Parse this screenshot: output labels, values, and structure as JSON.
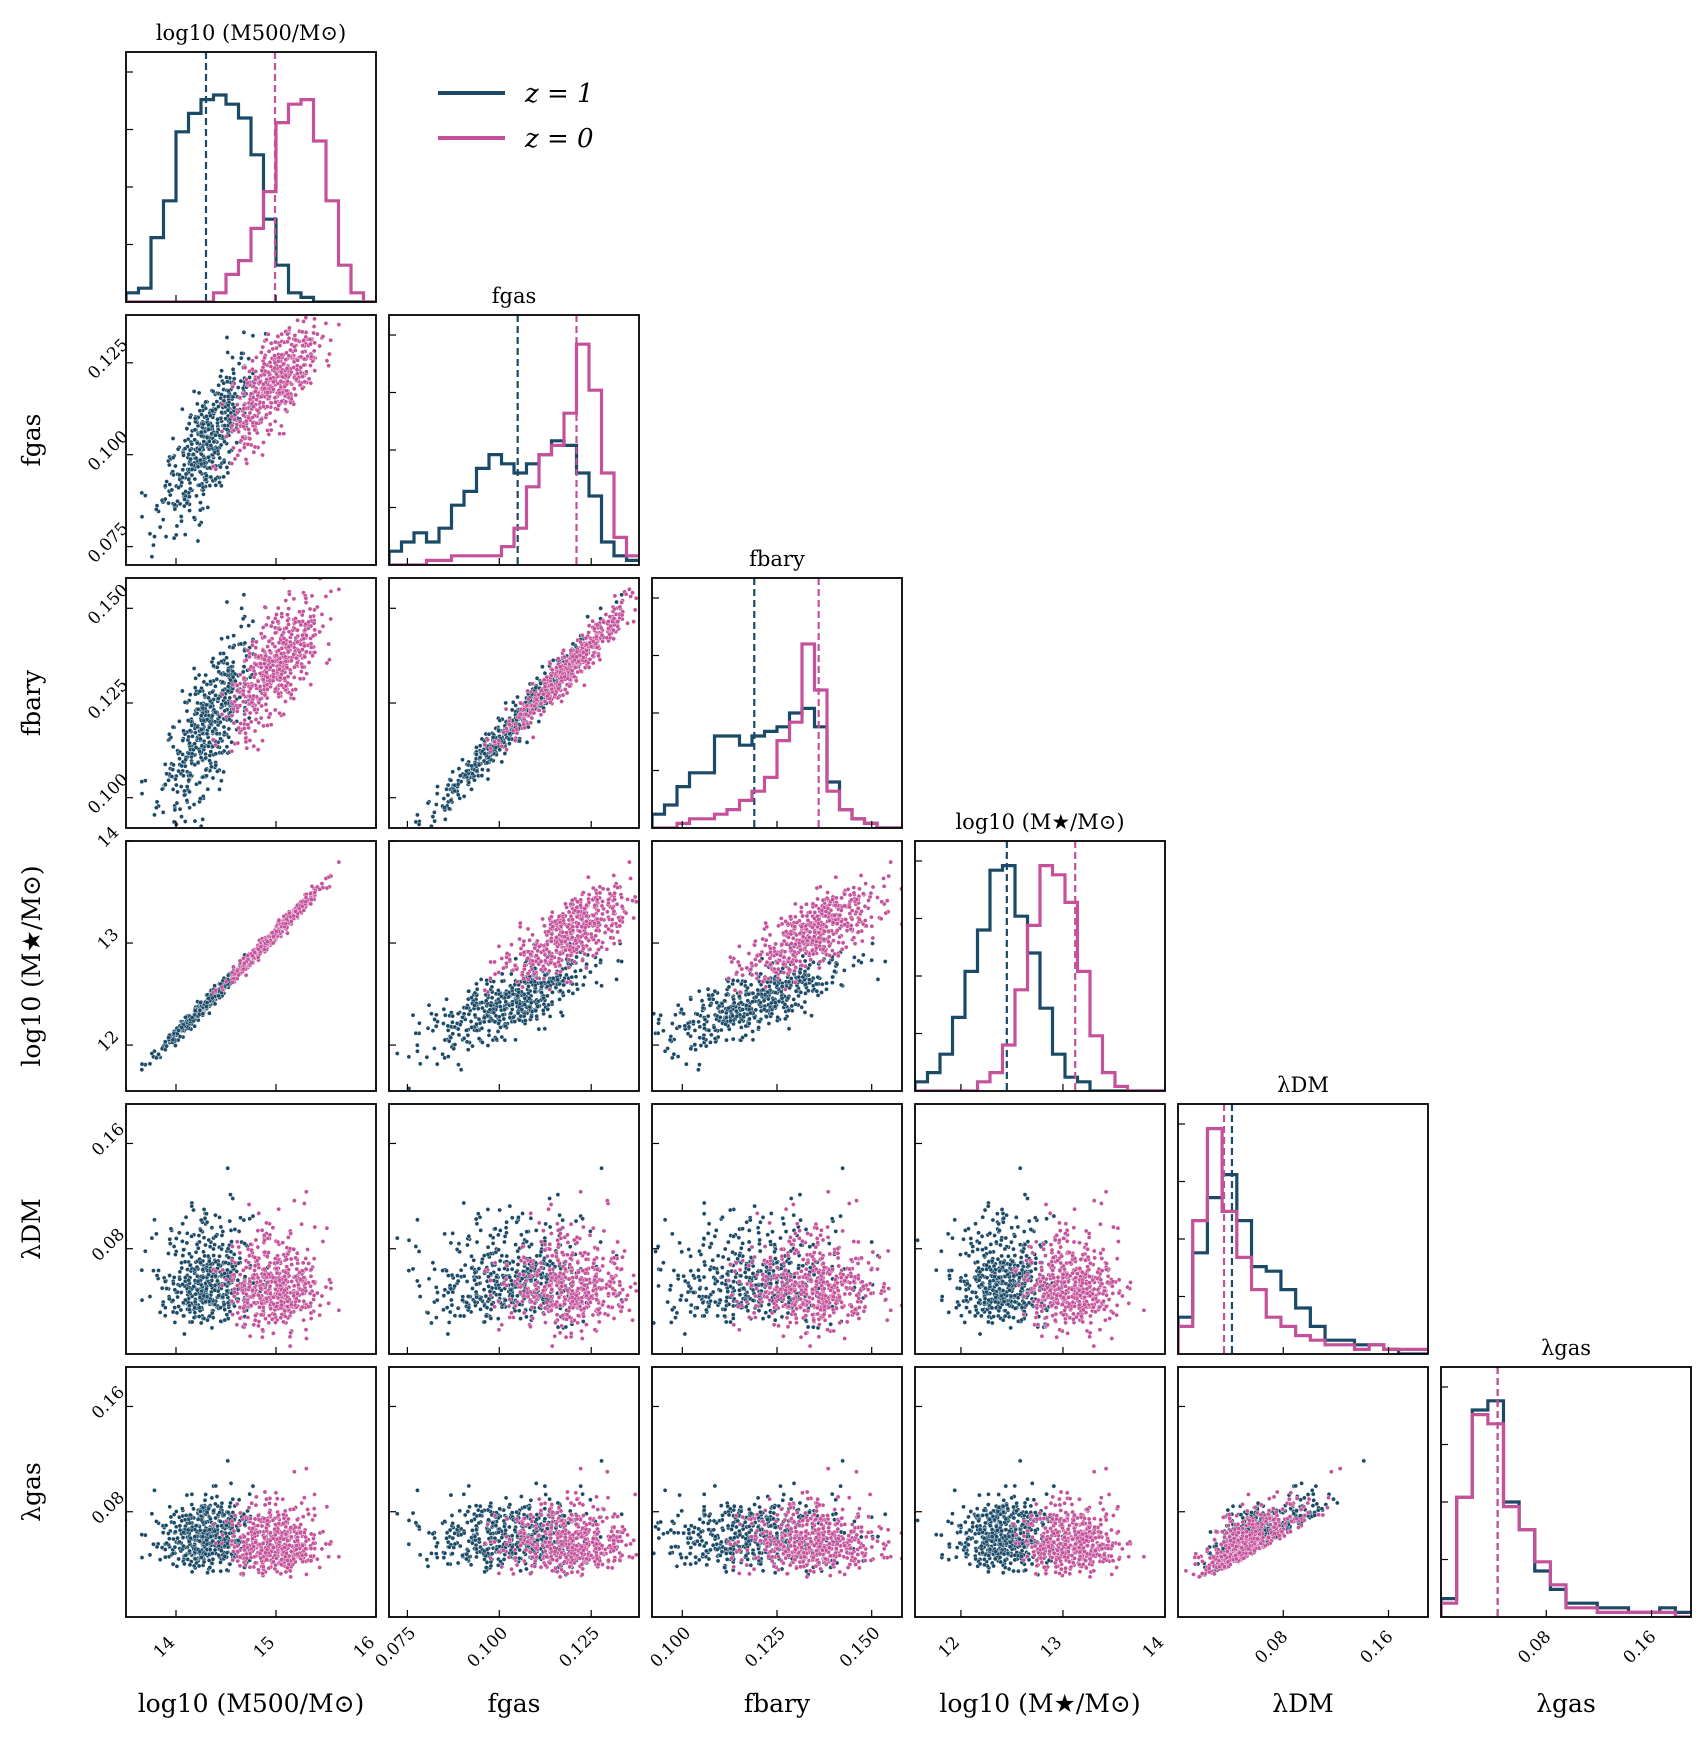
{
  "chart_data": {
    "type": "corner",
    "colors": {
      "z1": "#1b4a67",
      "z0": "#c4519a"
    },
    "legend": {
      "position": "upper-left",
      "entries": [
        {
          "key": "z1",
          "label": "z = 1"
        },
        {
          "key": "z0",
          "label": "z = 0"
        }
      ]
    },
    "titles": [
      "log10 (M500/M⊙)",
      "fgas",
      "fbary",
      "log10 (M★/M⊙)",
      "λDM",
      "λgas"
    ],
    "xlabels": [
      "log10 (M500/M⊙)",
      "fgas",
      "fbary",
      "log10 (M★/M⊙)",
      "λDM",
      "λgas"
    ],
    "ylabels": [
      "",
      "fgas",
      "fbary",
      "log10 (M★/M⊙)",
      "λDM",
      "λgas"
    ],
    "params": [
      {
        "range": [
          13.5,
          16.0
        ],
        "ticks": [
          14,
          15,
          16
        ],
        "ticklabels": [
          "14",
          "15",
          "16"
        ]
      },
      {
        "range": [
          0.07,
          0.138
        ],
        "ticks": [
          0.075,
          0.1,
          0.125
        ],
        "ticklabels": [
          "0.075",
          "0.100",
          "0.125"
        ]
      },
      {
        "range": [
          0.092,
          0.158
        ],
        "ticks": [
          0.1,
          0.125,
          0.15
        ],
        "ticklabels": [
          "0.100",
          "0.125",
          "0.150"
        ]
      },
      {
        "range": [
          11.55,
          14.0
        ],
        "ticks": [
          12,
          13,
          14
        ],
        "ticklabels": [
          "12",
          "13",
          "14"
        ]
      },
      {
        "range": [
          0.0,
          0.19
        ],
        "ticks": [
          0.08,
          0.16
        ],
        "ticklabels": [
          "0.08",
          "0.16"
        ]
      },
      {
        "range": [
          0.0,
          0.19
        ],
        "ticks": [
          0.08,
          0.16
        ],
        "ticklabels": [
          "0.08",
          "0.16"
        ]
      }
    ],
    "medians": {
      "z1": [
        14.3,
        0.105,
        0.119,
        12.45,
        0.041,
        0.043
      ],
      "z0": [
        14.99,
        0.121,
        0.136,
        13.12,
        0.035,
        0.043
      ]
    },
    "histograms": {
      "z1": [
        [
          0.02,
          0.03,
          0.14,
          0.22,
          0.37,
          0.41,
          0.44,
          0.45,
          0.43,
          0.4,
          0.32,
          0.18,
          0.08,
          0.02,
          0.01,
          0.0,
          0.0,
          0.0,
          0.0,
          0.0
        ],
        [
          0.03,
          0.05,
          0.07,
          0.05,
          0.08,
          0.13,
          0.16,
          0.21,
          0.24,
          0.22,
          0.2,
          0.22,
          0.24,
          0.27,
          0.26,
          0.2,
          0.15,
          0.05,
          0.02,
          0.01
        ],
        [
          0.03,
          0.05,
          0.09,
          0.12,
          0.12,
          0.2,
          0.2,
          0.18,
          0.2,
          0.21,
          0.22,
          0.25,
          0.26,
          0.22,
          0.1,
          0.04,
          0.02,
          0.01,
          0.0,
          0.0
        ],
        [
          0.02,
          0.04,
          0.08,
          0.16,
          0.26,
          0.35,
          0.48,
          0.49,
          0.38,
          0.3,
          0.18,
          0.08,
          0.03,
          0.02,
          0.0,
          0.0,
          0.0,
          0.0,
          0.0,
          0.0
        ],
        [
          0.08,
          0.22,
          0.34,
          0.39,
          0.29,
          0.19,
          0.18,
          0.14,
          0.1,
          0.06,
          0.03,
          0.03,
          0.02,
          0.02,
          0.01,
          0.0,
          0.0
        ],
        [
          0.04,
          0.26,
          0.45,
          0.47,
          0.25,
          0.19,
          0.1,
          0.06,
          0.03,
          0.03,
          0.02,
          0.02,
          0.01,
          0.01,
          0.02,
          0.01
        ]
      ],
      "z0": [
        [
          0.0,
          0.0,
          0.0,
          0.0,
          0.0,
          0.0,
          0.0,
          0.02,
          0.06,
          0.09,
          0.16,
          0.24,
          0.39,
          0.43,
          0.44,
          0.35,
          0.22,
          0.08,
          0.02,
          0.0
        ],
        [
          0.0,
          0.0,
          0.0,
          0.01,
          0.01,
          0.02,
          0.02,
          0.02,
          0.02,
          0.04,
          0.08,
          0.17,
          0.24,
          0.26,
          0.33,
          0.48,
          0.38,
          0.2,
          0.06,
          0.02
        ],
        [
          0.0,
          0.0,
          0.01,
          0.02,
          0.02,
          0.03,
          0.04,
          0.06,
          0.08,
          0.11,
          0.19,
          0.23,
          0.4,
          0.3,
          0.08,
          0.04,
          0.02,
          0.01,
          0.0,
          0.0
        ],
        [
          0.0,
          0.0,
          0.0,
          0.0,
          0.0,
          0.02,
          0.04,
          0.1,
          0.22,
          0.36,
          0.49,
          0.47,
          0.41,
          0.26,
          0.12,
          0.04,
          0.01,
          0.0,
          0.0,
          0.0
        ],
        [
          0.06,
          0.29,
          0.49,
          0.31,
          0.21,
          0.14,
          0.08,
          0.06,
          0.04,
          0.03,
          0.02,
          0.02,
          0.01,
          0.02,
          0.01,
          0.01,
          0.01
        ],
        [
          0.03,
          0.26,
          0.44,
          0.42,
          0.24,
          0.19,
          0.12,
          0.07,
          0.02,
          0.02,
          0.01,
          0.01,
          0.01,
          0.01,
          0.01,
          0.0
        ]
      ]
    },
    "samples": {
      "n": 500,
      "z1": {
        "mean": [
          14.32,
          0.1035,
          0.119,
          12.42,
          0.047,
          0.053
        ],
        "sd": [
          0.22,
          0.0108,
          0.0115,
          0.22,
          0.03,
          0.035
        ]
      },
      "z0": {
        "mean": [
          15.0,
          0.1195,
          0.1345,
          13.1,
          0.043,
          0.048
        ],
        "sd": [
          0.22,
          0.0085,
          0.0085,
          0.22,
          0.03,
          0.035
        ]
      }
    }
  }
}
